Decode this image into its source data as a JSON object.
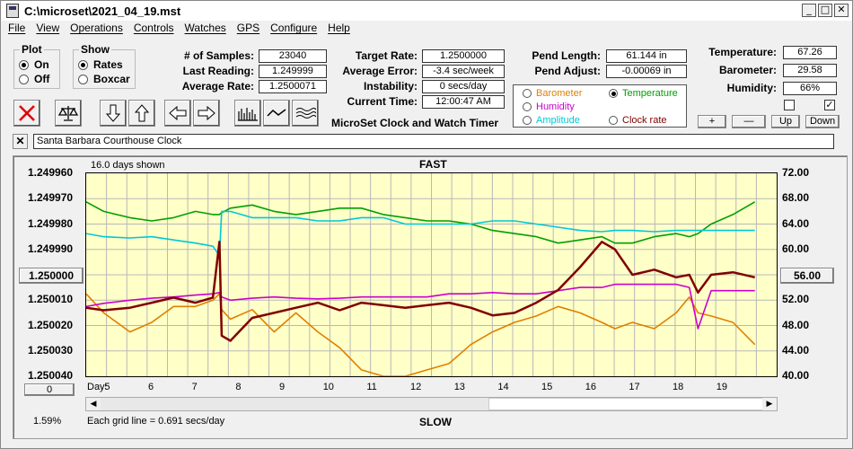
{
  "window": {
    "title": "C:\\microset\\2021_04_19.mst"
  },
  "menu": [
    "File",
    "View",
    "Operations",
    "Controls",
    "Watches",
    "GPS",
    "Configure",
    "Help"
  ],
  "plot_group": {
    "label": "Plot",
    "on": "On",
    "off": "Off",
    "selected": "On"
  },
  "show_group": {
    "label": "Show",
    "rates": "Rates",
    "boxcar": "Boxcar",
    "selected": "Rates"
  },
  "stats": {
    "samples_label": "# of Samples:",
    "samples": "23040",
    "last_label": "Last Reading:",
    "last": "1.249999",
    "avg_label": "Average Rate:",
    "avg": "1.2500071"
  },
  "rates": {
    "target_label": "Target Rate:",
    "target": "1.2500000",
    "error_label": "Average Error:",
    "error": "-3.4 sec/week",
    "instab_label": "Instability:",
    "instab": "0 secs/day",
    "time_label": "Current Time:",
    "time": "12:00:47 AM"
  },
  "app_title": "MicroSet Clock and Watch Timer",
  "pendulum": {
    "length_label": "Pend Length:",
    "length": "61.144 in",
    "adjust_label": "Pend Adjust:",
    "adjust": "-0.00069 in"
  },
  "sources": {
    "barometer": "Barometer",
    "temperature": "Temperature",
    "humidity": "Humidity",
    "amplitude": "Amplitude",
    "clock_rate": "Clock rate",
    "selected": "Temperature",
    "colors": {
      "barometer": "#e08000",
      "temperature": "#00a000",
      "humidity": "#cc00cc",
      "amplitude": "#00c8d8",
      "clock_rate": "#800000"
    }
  },
  "env": {
    "temp_label": "Temperature:",
    "temp": "67.26",
    "baro_label": "Barometer:",
    "baro": "29.58",
    "hum_label": "Humidity:",
    "hum": "66%",
    "plus": "+",
    "minus": "—",
    "up": "Up",
    "down": "Down"
  },
  "toolbar_icons": [
    "close-x-icon",
    "balance-scale-icon",
    "arrow-down-icon",
    "arrow-up-icon",
    "arrow-left-icon",
    "arrow-right-icon",
    "bar-graph-icon",
    "wave-icon",
    "triple-wave-icon"
  ],
  "clock_name": "Santa Barbara Courthouse Clock",
  "chart": {
    "days_shown": "16.0 days shown",
    "fast": "FAST",
    "slow": "SLOW",
    "left_button": "1.250000",
    "right_button": "56.00",
    "zero_button": "0",
    "percent": "1.59%",
    "grid_note": "Each grid line = 0.691 secs/day",
    "day_label": "Day:"
  },
  "chart_data": {
    "type": "line",
    "x": [
      4.5,
      4.9,
      5.5,
      6.0,
      6.5,
      7.0,
      7.4,
      7.55,
      7.6,
      7.8,
      8.3,
      8.8,
      9.3,
      9.8,
      10.3,
      10.8,
      11.3,
      11.8,
      12.3,
      12.8,
      13.3,
      13.8,
      14.3,
      14.8,
      15.3,
      15.8,
      16.3,
      16.6,
      17.0,
      17.5,
      18.0,
      18.3,
      18.5,
      18.8,
      19.3,
      19.8
    ],
    "x_ticks": [
      "5",
      "6",
      "7",
      "8",
      "9",
      "10",
      "11",
      "12",
      "13",
      "14",
      "15",
      "16",
      "17",
      "18",
      "19"
    ],
    "xlim": [
      4.5,
      20.3
    ],
    "left_axis": {
      "ticks": [
        "1.249960",
        "1.249970",
        "1.249980",
        "1.249990",
        "1.250000",
        "1.250010",
        "1.250020",
        "1.250030",
        "1.250040"
      ],
      "ylim": [
        1.24996,
        1.25004
      ],
      "inverted": true
    },
    "right_axis": {
      "ticks": [
        "72.00",
        "68.00",
        "64.00",
        "60.00",
        "56.00",
        "52.00",
        "48.00",
        "44.00",
        "40.00"
      ],
      "ylim": [
        40,
        72
      ]
    },
    "grid": true,
    "series": [
      {
        "name": "Temperature",
        "axis": "right",
        "color": "#00a000",
        "values": [
          67.5,
          66.0,
          65.0,
          64.5,
          65.0,
          66.0,
          65.5,
          65.5,
          65.8,
          66.5,
          67.0,
          66.0,
          65.5,
          66.0,
          66.5,
          66.5,
          65.5,
          65.0,
          64.5,
          64.5,
          64.0,
          63.0,
          62.5,
          62.0,
          61.0,
          61.5,
          62.0,
          61.0,
          61.0,
          62.0,
          62.5,
          62.0,
          62.5,
          64.0,
          65.5,
          67.5
        ]
      },
      {
        "name": "Barometer",
        "axis": "right",
        "color": "#e08000",
        "values": [
          53.0,
          50.0,
          47.0,
          48.5,
          51.0,
          51.0,
          52.0,
          53.0,
          50.5,
          49.0,
          50.5,
          47.0,
          50.0,
          47.0,
          44.5,
          41.0,
          40.0,
          40.0,
          41.0,
          42.0,
          45.0,
          47.0,
          48.5,
          49.5,
          51.0,
          50.0,
          48.5,
          47.5,
          48.5,
          47.5,
          50.0,
          52.5,
          50.0,
          49.5,
          48.5,
          45.0
        ]
      },
      {
        "name": "Humidity",
        "axis": "right",
        "color": "#cc00cc",
        "values": [
          51.0,
          51.5,
          52.0,
          52.3,
          52.5,
          52.8,
          53.0,
          53.2,
          52.5,
          52.0,
          52.3,
          52.5,
          52.3,
          52.2,
          52.3,
          52.5,
          52.5,
          52.5,
          52.5,
          53.0,
          53.0,
          53.2,
          53.0,
          53.0,
          53.5,
          54.0,
          54.0,
          54.5,
          54.5,
          54.5,
          54.5,
          54.0,
          47.5,
          53.5,
          53.5,
          53.5
        ]
      },
      {
        "name": "Amplitude",
        "axis": "right",
        "color": "#00c8d8",
        "values": [
          62.5,
          62.0,
          61.8,
          62.0,
          61.5,
          61.0,
          60.5,
          59.0,
          66.0,
          66.0,
          65.0,
          65.0,
          65.0,
          64.5,
          64.5,
          65.0,
          65.0,
          64.0,
          64.0,
          64.0,
          64.0,
          64.5,
          64.5,
          64.0,
          63.5,
          63.0,
          62.8,
          63.0,
          63.0,
          62.8,
          63.0,
          63.0,
          63.0,
          63.0,
          63.0,
          63.0
        ]
      },
      {
        "name": "Clock rate",
        "axis": "left",
        "color": "#800000",
        "values": [
          1.250013,
          1.250014,
          1.250013,
          1.250011,
          1.250009,
          1.250011,
          1.250009,
          1.249987,
          1.250024,
          1.250026,
          1.250017,
          1.250015,
          1.250013,
          1.250011,
          1.250014,
          1.250011,
          1.250012,
          1.250013,
          1.250012,
          1.250011,
          1.250013,
          1.250016,
          1.250015,
          1.250011,
          1.250006,
          1.249997,
          1.249987,
          1.24999,
          1.25,
          1.249998,
          1.250001,
          1.25,
          1.250007,
          1.25,
          1.249999,
          1.250001
        ]
      }
    ]
  }
}
